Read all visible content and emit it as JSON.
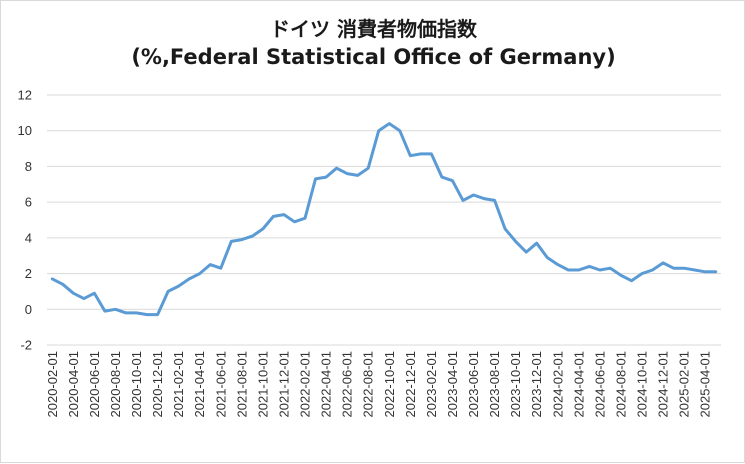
{
  "chart_data": {
    "type": "line",
    "title": "ドイツ 消費者物価指数",
    "subtitle": "(%,Federal Statistical Office of Germany)",
    "xlabel": "",
    "ylabel": "",
    "ylim": [
      -2,
      12
    ],
    "yticks": [
      "12",
      "10",
      "8",
      "6",
      "4",
      "2",
      "0",
      "-2"
    ],
    "ytick_values": [
      12,
      10,
      8,
      6,
      4,
      2,
      0,
      -2
    ],
    "grid": true,
    "legend": "none",
    "line_color": "#5b9bd5",
    "x": [
      "2020-02-01",
      "2020-03-01",
      "2020-04-01",
      "2020-05-01",
      "2020-06-01",
      "2020-07-01",
      "2020-08-01",
      "2020-09-01",
      "2020-10-01",
      "2020-11-01",
      "2020-12-01",
      "2021-01-01",
      "2021-02-01",
      "2021-03-01",
      "2021-04-01",
      "2021-05-01",
      "2021-06-01",
      "2021-07-01",
      "2021-08-01",
      "2021-09-01",
      "2021-10-01",
      "2021-11-01",
      "2021-12-01",
      "2022-01-01",
      "2022-02-01",
      "2022-03-01",
      "2022-04-01",
      "2022-05-01",
      "2022-06-01",
      "2022-07-01",
      "2022-08-01",
      "2022-09-01",
      "2022-10-01",
      "2022-11-01",
      "2022-12-01",
      "2023-01-01",
      "2023-02-01",
      "2023-03-01",
      "2023-04-01",
      "2023-05-01",
      "2023-06-01",
      "2023-07-01",
      "2023-08-01",
      "2023-09-01",
      "2023-10-01",
      "2023-11-01",
      "2023-12-01",
      "2024-01-01",
      "2024-02-01",
      "2024-03-01",
      "2024-04-01",
      "2024-05-01",
      "2024-06-01",
      "2024-07-01",
      "2024-08-01",
      "2024-09-01",
      "2024-10-01",
      "2024-11-01",
      "2024-12-01",
      "2025-01-01",
      "2025-02-01",
      "2025-03-01",
      "2025-04-01",
      "2025-05-01"
    ],
    "xtick_labels": [
      "2020-02-01",
      "2020-04-01",
      "2020-06-01",
      "2020-08-01",
      "2020-10-01",
      "2020-12-01",
      "2021-02-01",
      "2021-04-01",
      "2021-06-01",
      "2021-08-01",
      "2021-10-01",
      "2021-12-01",
      "2022-02-01",
      "2022-04-01",
      "2022-06-01",
      "2022-08-01",
      "2022-10-01",
      "2022-12-01",
      "2023-02-01",
      "2023-04-01",
      "2023-06-01",
      "2023-08-01",
      "2023-10-01",
      "2023-12-01",
      "2024-02-01",
      "2024-04-01",
      "2024-06-01",
      "2024-08-01",
      "2024-10-01",
      "2024-12-01",
      "2025-02-01",
      "2025-04-01"
    ],
    "series": [
      {
        "values": [
          1.7,
          1.4,
          0.9,
          0.6,
          0.9,
          -0.1,
          0.0,
          -0.2,
          -0.2,
          -0.3,
          -0.3,
          1.0,
          1.3,
          1.7,
          2.0,
          2.5,
          2.3,
          3.8,
          3.9,
          4.1,
          4.5,
          5.2,
          5.3,
          4.9,
          5.1,
          7.3,
          7.4,
          7.9,
          7.6,
          7.5,
          7.9,
          10.0,
          10.4,
          10.0,
          8.6,
          8.7,
          8.7,
          7.4,
          7.2,
          6.1,
          6.4,
          6.2,
          6.1,
          4.5,
          3.8,
          3.2,
          3.7,
          2.9,
          2.5,
          2.2,
          2.2,
          2.4,
          2.2,
          2.3,
          1.9,
          1.6,
          2.0,
          2.2,
          2.6,
          2.3,
          2.3,
          2.2,
          2.1,
          2.1
        ]
      }
    ]
  }
}
